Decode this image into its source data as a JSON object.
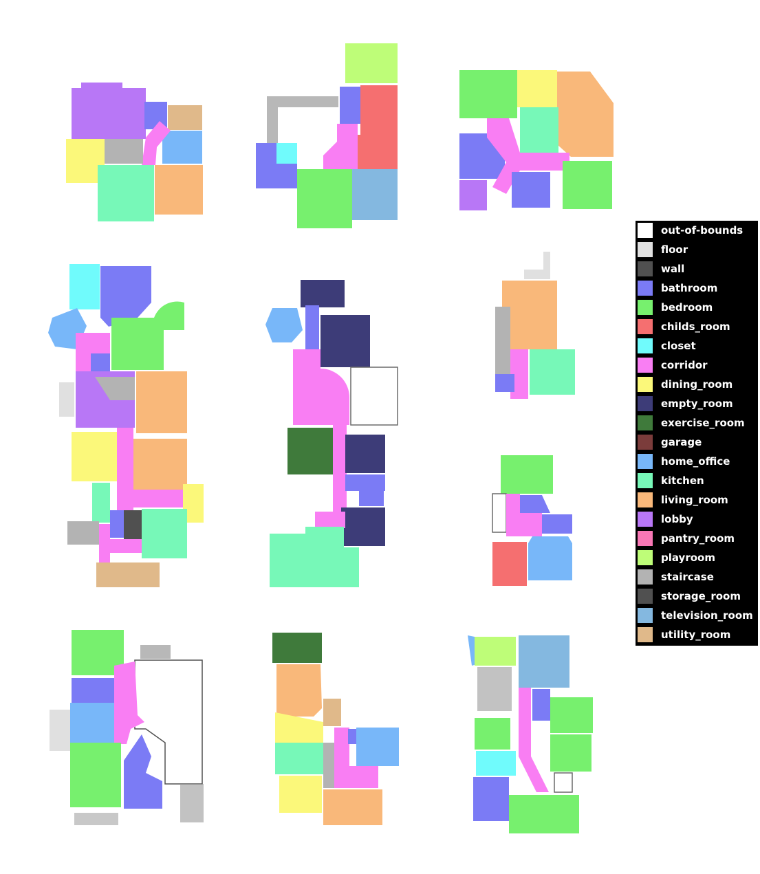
{
  "legend": [
    {
      "label": "out-of-bounds",
      "color": "#ffffff"
    },
    {
      "label": "floor",
      "color": "#e0e0e0"
    },
    {
      "label": "wall",
      "color": "#505050"
    },
    {
      "label": "bathroom",
      "color": "#7b7bf5"
    },
    {
      "label": "bedroom",
      "color": "#77f06e"
    },
    {
      "label": "childs_room",
      "color": "#f56f70"
    },
    {
      "label": "closet",
      "color": "#70fbfc"
    },
    {
      "label": "corridor",
      "color": "#f97ef3"
    },
    {
      "label": "dining_room",
      "color": "#fbf87a"
    },
    {
      "label": "empty_room",
      "color": "#3d3c78"
    },
    {
      "label": "exercise_room",
      "color": "#3f7a3b"
    },
    {
      "label": "garage",
      "color": "#7b3c3b"
    },
    {
      "label": "home_office",
      "color": "#78b7f9"
    },
    {
      "label": "kitchen",
      "color": "#77f8b8"
    },
    {
      "label": "living_room",
      "color": "#f9b87a"
    },
    {
      "label": "lobby",
      "color": "#b877f6"
    },
    {
      "label": "pantry_room",
      "color": "#f877b5"
    },
    {
      "label": "playroom",
      "color": "#befd78"
    },
    {
      "label": "staircase",
      "color": "#b3b3b3"
    },
    {
      "label": "storage_room",
      "color": "#505050"
    },
    {
      "label": "television_room",
      "color": "#84b8e0"
    },
    {
      "label": "utility_room",
      "color": "#e0b98a"
    }
  ]
}
